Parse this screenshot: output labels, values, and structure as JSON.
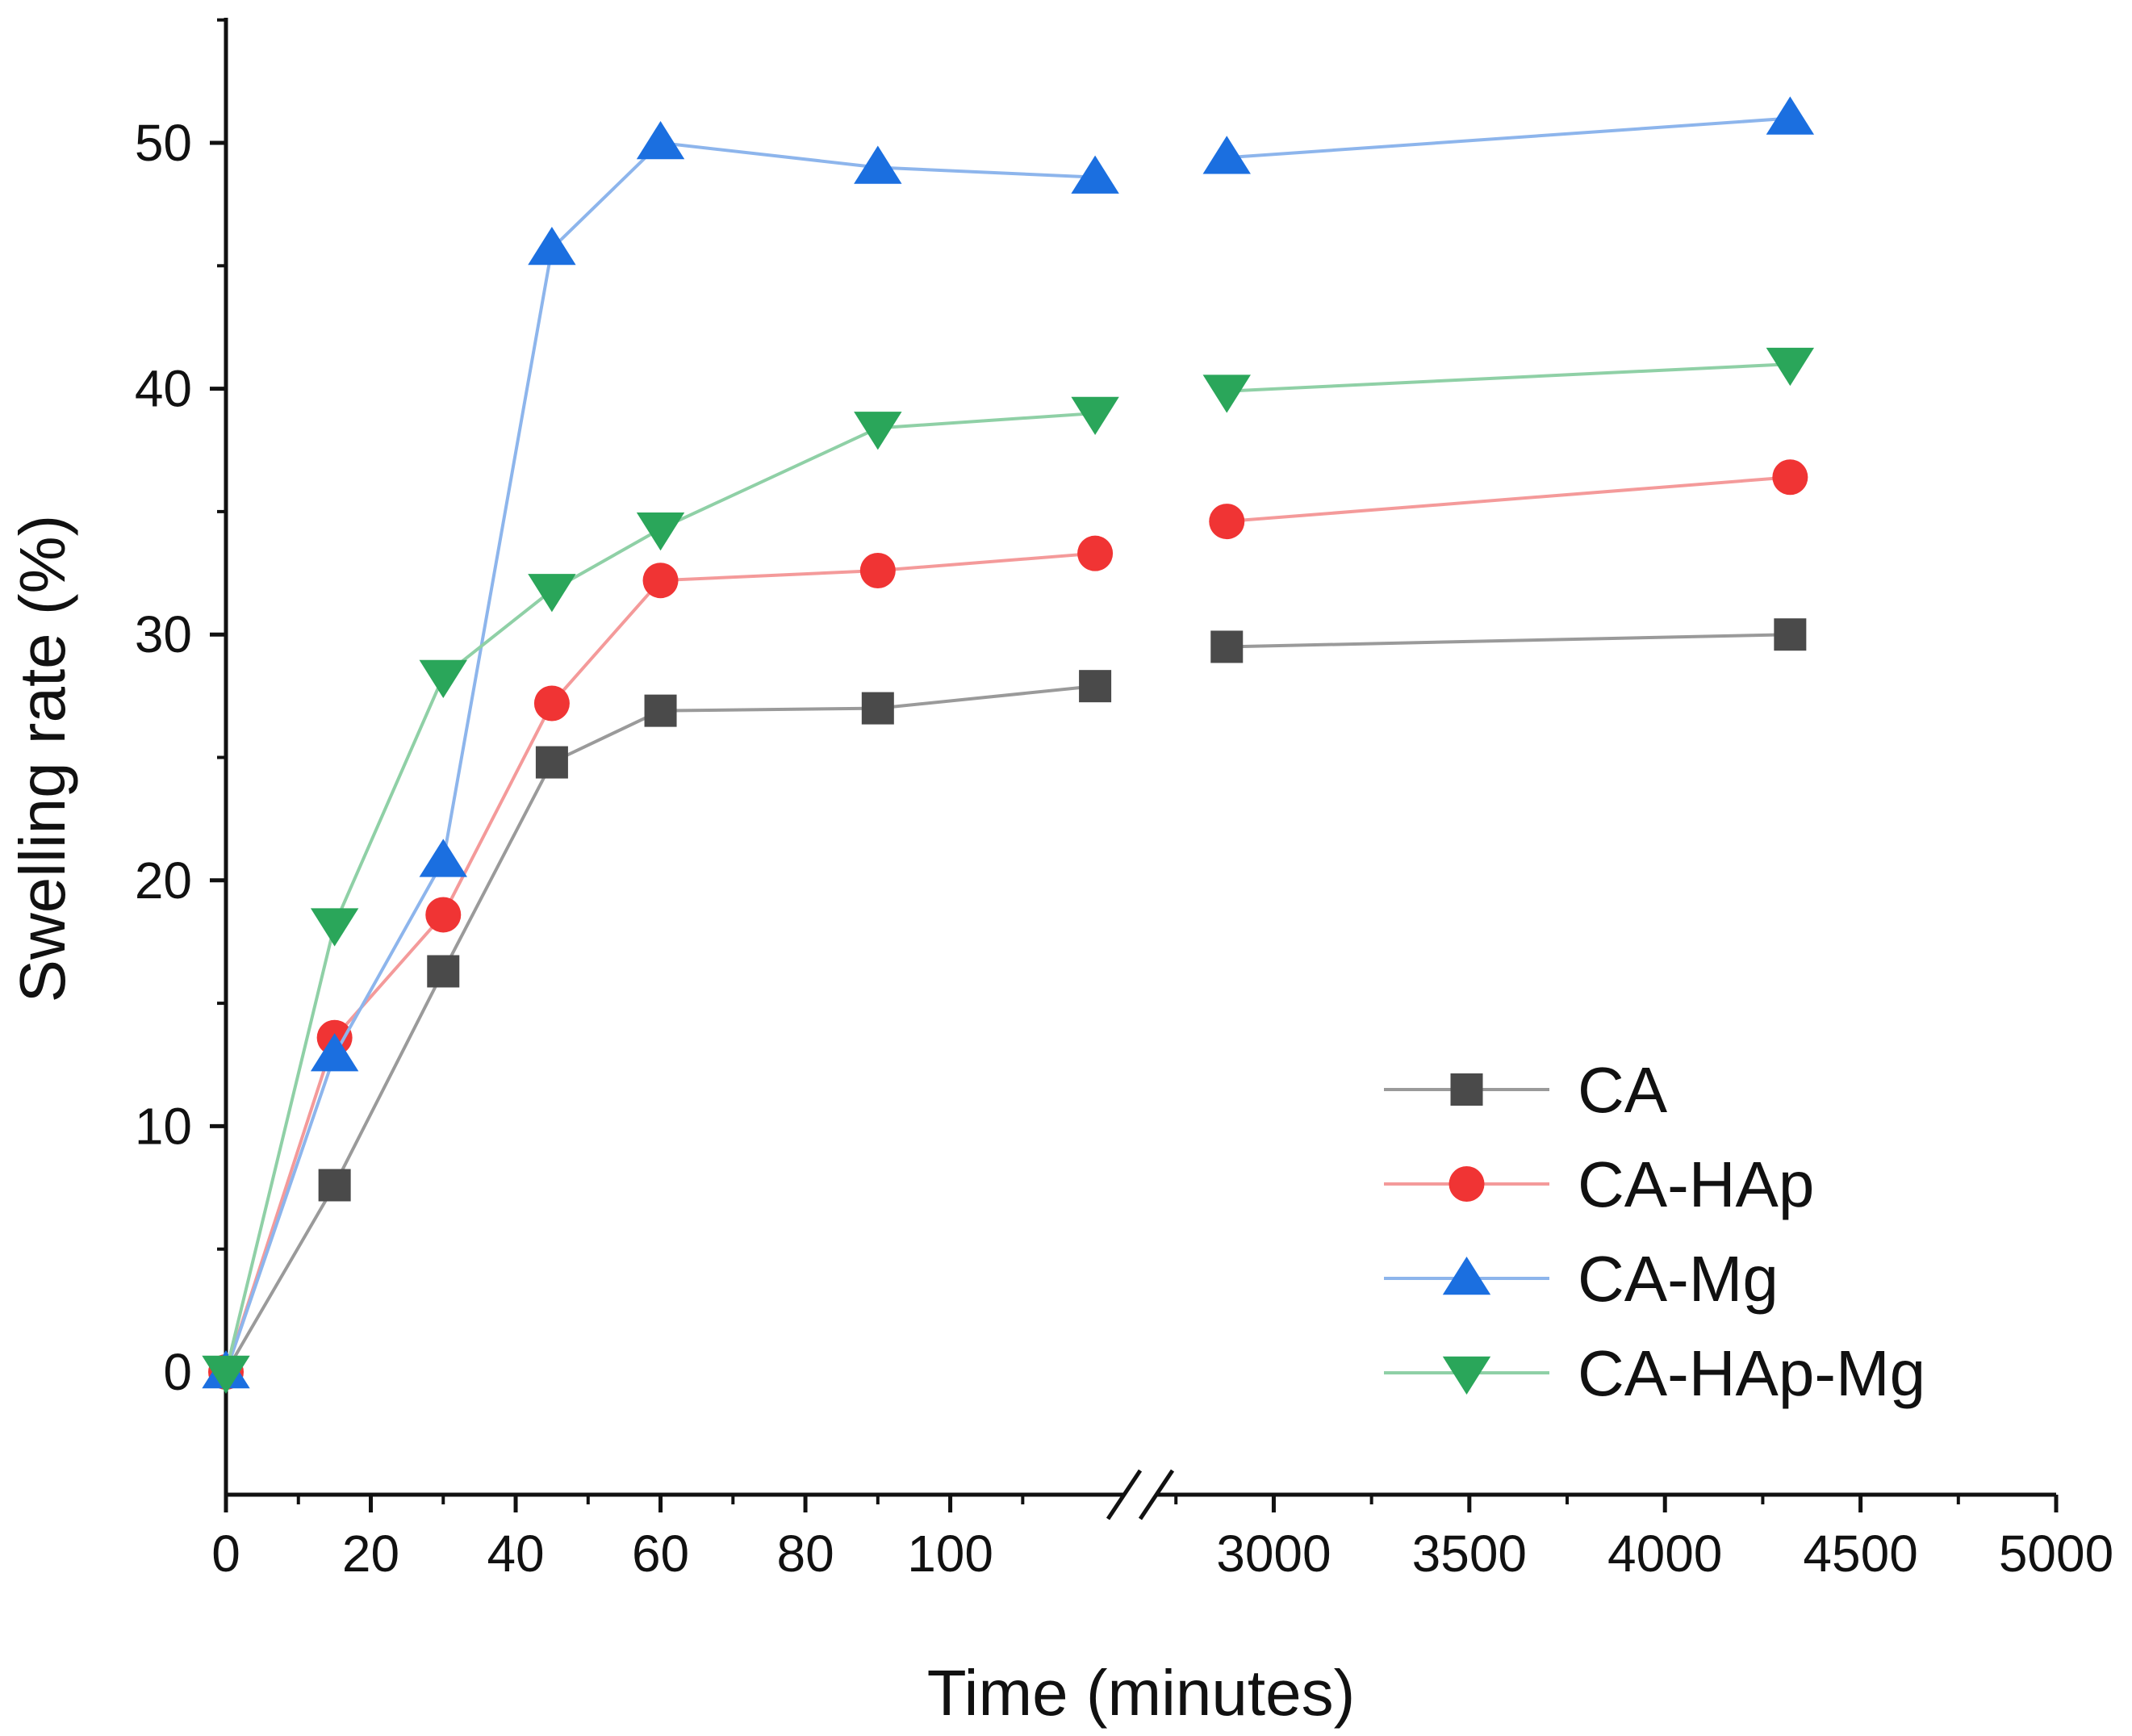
{
  "chart_data": {
    "type": "line",
    "title": "",
    "xlabel": "Time (minutes)",
    "ylabel": "Swelling rate (%)",
    "ylim": [
      -5,
      55
    ],
    "yticks": [
      0,
      10,
      20,
      30,
      40,
      50
    ],
    "x_axis_break": true,
    "segment1": {
      "xlim": [
        0,
        124
      ],
      "ticks": [
        0,
        20,
        40,
        60,
        80,
        100
      ],
      "tick_labels": [
        "0",
        "20",
        "40",
        "60",
        "80",
        "100"
      ]
    },
    "segment2": {
      "xlim": [
        2700,
        5000
      ],
      "ticks": [
        3000,
        3500,
        4000,
        4500,
        5000
      ],
      "tick_labels": [
        "3000",
        "3500",
        "4000",
        "4500",
        "5000"
      ]
    },
    "legend_position": "bottom-right",
    "series": [
      {
        "name": "CA",
        "color": "#4a4a4a",
        "line_color": "#9a9a9a",
        "marker": "square",
        "points": [
          [
            0,
            0
          ],
          [
            15,
            7.6
          ],
          [
            30,
            16.3
          ],
          [
            45,
            24.8
          ],
          [
            60,
            26.9
          ],
          [
            90,
            27.0
          ],
          [
            120,
            27.9
          ],
          [
            2880,
            29.5
          ],
          [
            4320,
            30.0
          ]
        ]
      },
      {
        "name": "CA-HAp",
        "color": "#f03434",
        "line_color": "#f49a9a",
        "marker": "circle",
        "points": [
          [
            0,
            0
          ],
          [
            15,
            13.6
          ],
          [
            30,
            18.6
          ],
          [
            45,
            27.2
          ],
          [
            60,
            32.2
          ],
          [
            90,
            32.6
          ],
          [
            120,
            33.3
          ],
          [
            2880,
            34.6
          ],
          [
            4320,
            36.4
          ]
        ]
      },
      {
        "name": "CA-Mg",
        "color": "#1b6fe0",
        "line_color": "#8db5ec",
        "marker": "triangle-up",
        "points": [
          [
            0,
            0
          ],
          [
            15,
            12.9
          ],
          [
            30,
            20.8
          ],
          [
            45,
            45.7
          ],
          [
            60,
            50.0
          ],
          [
            90,
            49.0
          ],
          [
            120,
            48.6
          ],
          [
            2880,
            49.4
          ],
          [
            4320,
            51.0
          ]
        ]
      },
      {
        "name": "CA-HAp-Mg",
        "color": "#2aa65a",
        "line_color": "#8fd0a6",
        "marker": "triangle-down",
        "points": [
          [
            0,
            0
          ],
          [
            15,
            18.2
          ],
          [
            30,
            28.3
          ],
          [
            45,
            31.8
          ],
          [
            60,
            34.3
          ],
          [
            90,
            38.4
          ],
          [
            120,
            39.0
          ],
          [
            2880,
            39.9
          ],
          [
            4320,
            41.0
          ]
        ]
      }
    ]
  }
}
